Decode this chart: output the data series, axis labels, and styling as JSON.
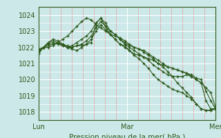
{
  "bg_color": "#cce8e8",
  "plot_bg_color": "#cce8e8",
  "grid_major_color": "#ffffff",
  "grid_minor_color": "#e8a0a0",
  "line_color": "#2d5a1b",
  "title_color": "#2d5a1b",
  "ytick_color": "#2d5a1b",
  "xtick_color": "#2d5a1b",
  "xlabel": "Pression niveau de la mer( hPa )",
  "yticks": [
    1018,
    1019,
    1020,
    1021,
    1022,
    1023,
    1024
  ],
  "ylim": [
    1017.5,
    1024.5
  ],
  "xlim": [
    0,
    48
  ],
  "xtick_positions": [
    0,
    24,
    48
  ],
  "xtick_labels": [
    "Lun",
    "Mar",
    "Mer"
  ],
  "vline_x": 24,
  "series": [
    [
      1021.8,
      1022.0,
      1022.2,
      1022.3,
      1022.2,
      1022.1,
      1022.0,
      1022.0,
      1022.1,
      1022.1,
      1022.2,
      1022.3,
      1023.5,
      1023.8,
      1023.3,
      1022.8,
      1022.5,
      1022.2,
      1022.1,
      1021.8,
      1021.5,
      1021.3,
      1021.0,
      1020.7,
      1020.3,
      1020.0,
      1019.8,
      1019.6,
      1019.4,
      1019.3,
      1019.2,
      1019.0,
      1018.8,
      1018.5,
      1018.2,
      1018.1,
      1018.1,
      1018.2
    ],
    [
      1021.7,
      1022.0,
      1022.3,
      1022.4,
      1022.3,
      1022.1,
      1022.0,
      1022.1,
      1022.3,
      1022.5,
      1022.7,
      1023.0,
      1023.5,
      1023.8,
      1023.5,
      1023.0,
      1022.8,
      1022.5,
      1022.2,
      1022.0,
      1021.8,
      1021.6,
      1021.4,
      1021.2,
      1020.9,
      1020.7,
      1020.5,
      1020.3,
      1020.2,
      1020.2,
      1020.2,
      1020.3,
      1020.2,
      1020.0,
      1019.8,
      1018.7,
      1018.2,
      1018.2
    ],
    [
      1021.6,
      1022.0,
      1022.3,
      1022.5,
      1022.4,
      1022.2,
      1022.1,
      1022.0,
      1022.1,
      1022.2,
      1022.4,
      1022.7,
      1023.2,
      1023.6,
      1023.3,
      1023.0,
      1022.8,
      1022.5,
      1022.3,
      1022.1,
      1022.0,
      1021.9,
      1021.8,
      1021.6,
      1021.4,
      1021.2,
      1021.0,
      1020.8,
      1020.7,
      1020.6,
      1020.5,
      1020.4,
      1020.3,
      1020.1,
      1020.0,
      1019.3,
      1018.7,
      1018.2
    ],
    [
      1021.8,
      1022.0,
      1022.1,
      1022.2,
      1022.3,
      1022.2,
      1022.0,
      1021.9,
      1021.8,
      1022.0,
      1022.2,
      1022.5,
      1023.0,
      1023.4,
      1023.1,
      1022.8,
      1022.5,
      1022.2,
      1022.0,
      1021.8,
      1021.6,
      1021.5,
      1021.4,
      1021.3,
      1021.2,
      1021.0,
      1020.9,
      1020.8,
      1020.7,
      1020.6,
      1020.5,
      1020.4,
      1020.2,
      1020.0,
      1019.8,
      1019.5,
      1019.2,
      1018.3
    ],
    [
      1021.9,
      1022.0,
      1022.0,
      1022.1,
      1022.3,
      1022.5,
      1022.7,
      1023.0,
      1023.3,
      1023.6,
      1023.8,
      1023.7,
      1023.4,
      1023.2,
      1023.0,
      1022.8,
      1022.7,
      1022.6,
      1022.4,
      1022.2,
      1022.0,
      1021.9,
      1021.7,
      1021.5,
      1021.3,
      1021.0,
      1020.8,
      1020.5,
      1020.2,
      1019.8,
      1019.5,
      1019.2,
      1018.9,
      1018.5,
      1018.2,
      1018.1,
      1018.1,
      1018.2
    ]
  ]
}
